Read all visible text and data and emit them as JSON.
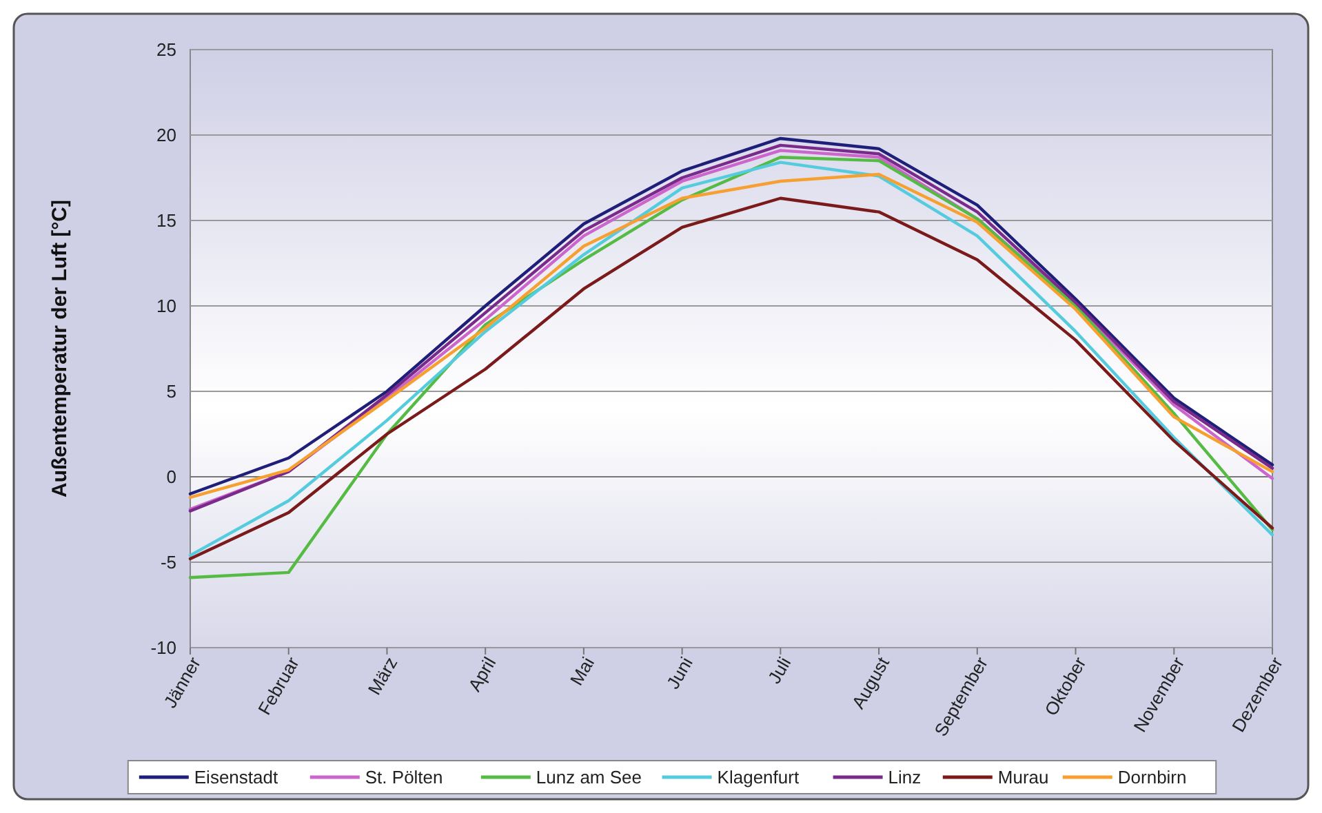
{
  "chart_data": {
    "type": "line",
    "ylabel": "Außentemperatur der Luft [°C]",
    "categories": [
      "Jänner",
      "Februar",
      "März",
      "April",
      "Mai",
      "Juni",
      "Juli",
      "August",
      "September",
      "Oktober",
      "November",
      "Dezember"
    ],
    "ylim": [
      -10,
      25
    ],
    "yticks": [
      -10,
      -5,
      0,
      5,
      10,
      15,
      20,
      25
    ],
    "grid": "y",
    "legend": "bottom",
    "marker": "none",
    "line_style": "solid",
    "series": [
      {
        "name": "Eisenstadt",
        "color": "#1f1f7a",
        "values": [
          -1.0,
          1.1,
          5.0,
          10.0,
          14.8,
          17.9,
          19.8,
          19.2,
          15.9,
          10.4,
          4.6,
          0.7
        ]
      },
      {
        "name": "St. Pölten",
        "color": "#cc66cc",
        "values": [
          -1.9,
          0.3,
          4.6,
          9.2,
          14.1,
          17.3,
          19.1,
          18.7,
          15.1,
          10.1,
          4.2,
          -0.1
        ]
      },
      {
        "name": "Lunz am See",
        "color": "#55bb44",
        "values": [
          -5.9,
          -5.6,
          2.5,
          8.9,
          12.7,
          16.2,
          18.7,
          18.5,
          15.1,
          10.0,
          3.7,
          -3.1
        ]
      },
      {
        "name": "Klagenfurt",
        "color": "#55ccdd",
        "values": [
          -4.6,
          -1.4,
          3.3,
          8.5,
          13.0,
          16.9,
          18.4,
          17.6,
          14.1,
          8.5,
          2.3,
          -3.4
        ]
      },
      {
        "name": "Linz",
        "color": "#7a2a8a",
        "values": [
          -2.0,
          0.3,
          4.8,
          9.6,
          14.4,
          17.5,
          19.4,
          18.9,
          15.5,
          10.2,
          4.4,
          0.5
        ]
      },
      {
        "name": "Murau",
        "color": "#7a1a1a",
        "values": [
          -4.8,
          -2.1,
          2.5,
          6.3,
          11.0,
          14.6,
          16.3,
          15.5,
          12.7,
          8.0,
          2.1,
          -3.0
        ]
      },
      {
        "name": "Dornbirn",
        "color": "#f5a030",
        "values": [
          -1.2,
          0.4,
          4.5,
          8.7,
          13.5,
          16.3,
          17.3,
          17.7,
          14.9,
          9.8,
          3.5,
          0.3
        ]
      }
    ]
  }
}
